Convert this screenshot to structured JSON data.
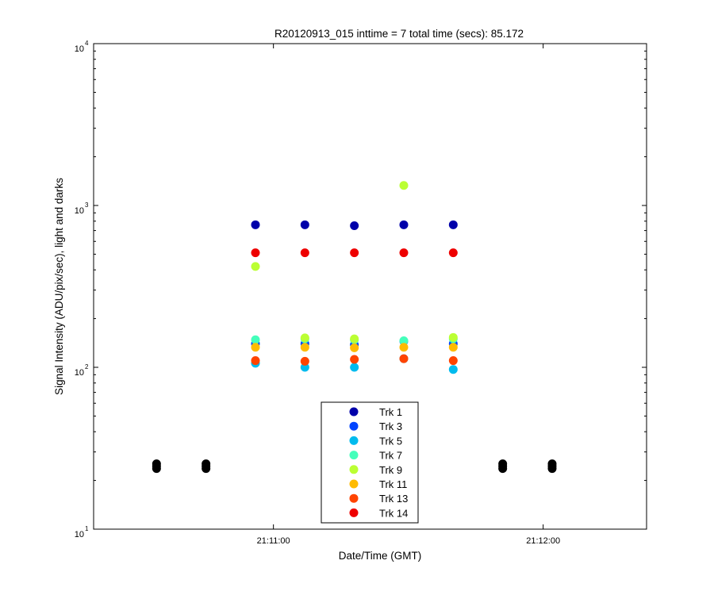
{
  "chart_data": {
    "type": "scatter",
    "title": "R20120913_015 inttime = 7 total time (secs): 85.172",
    "xlabel": "Date/Time (GMT)",
    "ylabel": "Signal Intensity (ADU/pix/sec), light and darks",
    "y_scale": "log",
    "ylim": [
      10,
      10000
    ],
    "y_ticks": [
      {
        "value": 10,
        "base": "10",
        "exp": "1"
      },
      {
        "value": 100,
        "base": "10",
        "exp": "2"
      },
      {
        "value": 1000,
        "base": "10",
        "exp": "3"
      },
      {
        "value": 10000,
        "base": "10",
        "exp": "4"
      }
    ],
    "xlim": [
      "21:10:20",
      "21:12:23"
    ],
    "x_ticks": [
      "21:11:00",
      "21:12:00"
    ],
    "grid": false,
    "legend_position": "bottom-center",
    "series": [
      {
        "name": "Trk 1",
        "color": "#0000aa",
        "x": [
          "21:10:56",
          "21:11:07",
          "21:11:18",
          "21:11:29",
          "21:11:40"
        ],
        "y": [
          760,
          760,
          750,
          760,
          760
        ]
      },
      {
        "name": "Trk 3",
        "color": "#0044ff",
        "x": [
          "21:10:56",
          "21:11:07",
          "21:11:18",
          "21:11:29",
          "21:11:40"
        ],
        "y": [
          140,
          140,
          138,
          145,
          140
        ]
      },
      {
        "name": "Trk 5",
        "color": "#00bbee",
        "x": [
          "21:10:56",
          "21:11:07",
          "21:11:18",
          "21:11:29",
          "21:11:40"
        ],
        "y": [
          106,
          100,
          100,
          113,
          97
        ]
      },
      {
        "name": "Trk 7",
        "color": "#44ffbb",
        "x": [
          "21:10:56",
          "21:11:07",
          "21:11:18",
          "21:11:29",
          "21:11:40"
        ],
        "y": [
          148,
          150,
          148,
          146,
          150
        ]
      },
      {
        "name": "Trk 9",
        "color": "#bbff33",
        "x": [
          "21:10:56",
          "21:11:07",
          "21:11:18",
          "21:11:29",
          "21:11:40"
        ],
        "y": [
          420,
          152,
          150,
          1330,
          153
        ]
      },
      {
        "name": "Trk 11",
        "color": "#ffbb00",
        "x": [
          "21:10:56",
          "21:11:07",
          "21:11:18",
          "21:11:29",
          "21:11:40"
        ],
        "y": [
          133,
          133,
          132,
          133,
          133
        ]
      },
      {
        "name": "Trk 13",
        "color": "#ff4400",
        "x": [
          "21:10:56",
          "21:11:07",
          "21:11:18",
          "21:11:29",
          "21:11:40"
        ],
        "y": [
          110,
          109,
          112,
          113,
          110
        ]
      },
      {
        "name": "Trk 14",
        "color": "#ee0000",
        "x": [
          "21:10:56",
          "21:11:07",
          "21:11:18",
          "21:11:29",
          "21:11:40"
        ],
        "y": [
          510,
          510,
          510,
          510,
          510
        ]
      }
    ],
    "darks": {
      "color": "#000000",
      "x": [
        "21:10:34",
        "21:10:45",
        "21:11:51",
        "21:12:02"
      ],
      "y": [
        24.5,
        24.5,
        24.5,
        24.5
      ]
    }
  }
}
